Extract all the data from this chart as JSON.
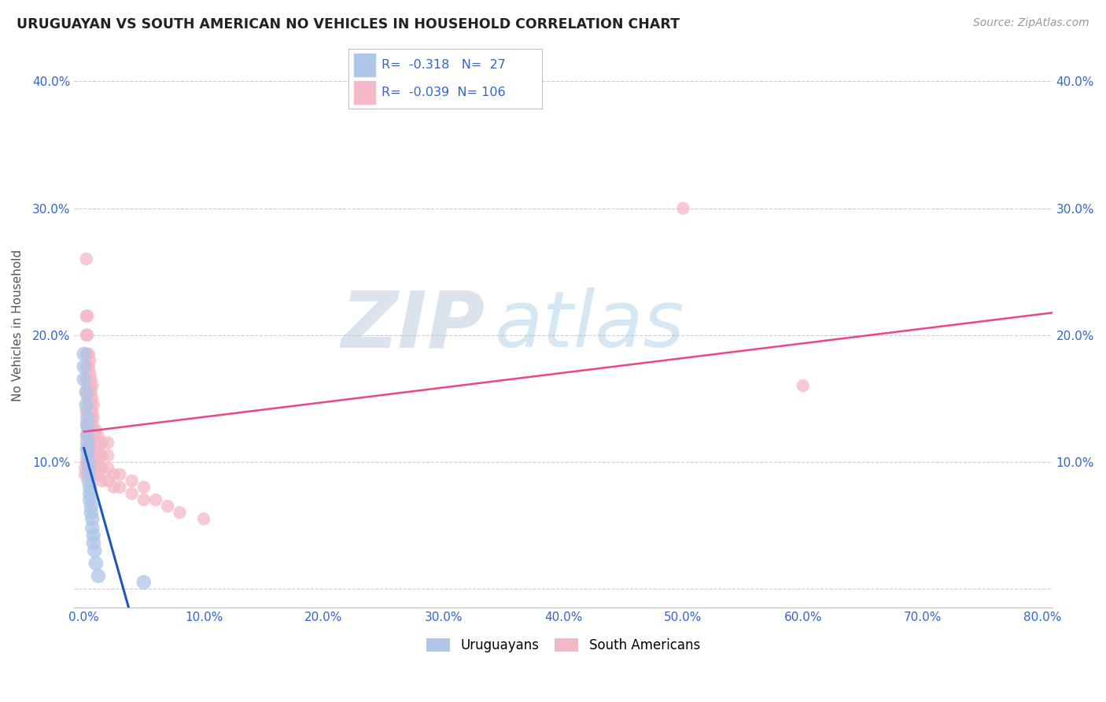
{
  "title": "URUGUAYAN VS SOUTH AMERICAN NO VEHICLES IN HOUSEHOLD CORRELATION CHART",
  "source": "Source: ZipAtlas.com",
  "xlabel_ticks": [
    0.0,
    0.1,
    0.2,
    0.3,
    0.4,
    0.5,
    0.6,
    0.7,
    0.8
  ],
  "xlabel_labels": [
    "0.0%",
    "10.0%",
    "20.0%",
    "30.0%",
    "40.0%",
    "50.0%",
    "60.0%",
    "70.0%",
    "80.0%"
  ],
  "ylabel_ticks": [
    0.0,
    0.1,
    0.2,
    0.3,
    0.4
  ],
  "ylabel_labels": [
    "",
    "10.0%",
    "20.0%",
    "30.0%",
    "40.0%"
  ],
  "xlim": [
    -0.008,
    0.808
  ],
  "ylim": [
    -0.015,
    0.43
  ],
  "watermark_zip": "ZIP",
  "watermark_atlas": "atlas",
  "legend_uruguayan": "Uruguayans",
  "legend_south_american": "South Americans",
  "r_uruguayan": -0.318,
  "n_uruguayan": 27,
  "r_south_american": -0.039,
  "n_south_american": 106,
  "uruguayan_color": "#aec6e8",
  "uruguayan_edge": "#aec6e8",
  "south_american_color": "#f4b8c8",
  "south_american_edge": "#f4b8c8",
  "trend_uruguayan_color": "#2255bb",
  "trend_south_american_color": "#ee4488",
  "uruguayan_points": [
    [
      0.0,
      0.185
    ],
    [
      0.0,
      0.175
    ],
    [
      0.0,
      0.165
    ],
    [
      0.002,
      0.155
    ],
    [
      0.002,
      0.145
    ],
    [
      0.003,
      0.135
    ],
    [
      0.003,
      0.128
    ],
    [
      0.003,
      0.122
    ],
    [
      0.003,
      0.115
    ],
    [
      0.003,
      0.11
    ],
    [
      0.003,
      0.105
    ],
    [
      0.004,
      0.098
    ],
    [
      0.004,
      0.092
    ],
    [
      0.004,
      0.085
    ],
    [
      0.005,
      0.08
    ],
    [
      0.005,
      0.075
    ],
    [
      0.005,
      0.07
    ],
    [
      0.006,
      0.065
    ],
    [
      0.006,
      0.06
    ],
    [
      0.007,
      0.055
    ],
    [
      0.007,
      0.048
    ],
    [
      0.008,
      0.042
    ],
    [
      0.008,
      0.036
    ],
    [
      0.009,
      0.03
    ],
    [
      0.01,
      0.02
    ],
    [
      0.012,
      0.01
    ],
    [
      0.05,
      0.005
    ]
  ],
  "south_american_points": [
    [
      0.001,
      0.09
    ],
    [
      0.001,
      0.095
    ],
    [
      0.002,
      0.1
    ],
    [
      0.002,
      0.11
    ],
    [
      0.002,
      0.12
    ],
    [
      0.002,
      0.13
    ],
    [
      0.002,
      0.14
    ],
    [
      0.002,
      0.155
    ],
    [
      0.002,
      0.165
    ],
    [
      0.002,
      0.175
    ],
    [
      0.002,
      0.185
    ],
    [
      0.002,
      0.2
    ],
    [
      0.002,
      0.215
    ],
    [
      0.002,
      0.26
    ],
    [
      0.003,
      0.09
    ],
    [
      0.003,
      0.095
    ],
    [
      0.003,
      0.1
    ],
    [
      0.003,
      0.11
    ],
    [
      0.003,
      0.12
    ],
    [
      0.003,
      0.13
    ],
    [
      0.003,
      0.14
    ],
    [
      0.003,
      0.15
    ],
    [
      0.003,
      0.155
    ],
    [
      0.003,
      0.16
    ],
    [
      0.003,
      0.17
    ],
    [
      0.003,
      0.175
    ],
    [
      0.003,
      0.185
    ],
    [
      0.003,
      0.2
    ],
    [
      0.003,
      0.215
    ],
    [
      0.004,
      0.095
    ],
    [
      0.004,
      0.105
    ],
    [
      0.004,
      0.115
    ],
    [
      0.004,
      0.125
    ],
    [
      0.004,
      0.135
    ],
    [
      0.004,
      0.145
    ],
    [
      0.004,
      0.155
    ],
    [
      0.004,
      0.165
    ],
    [
      0.004,
      0.175
    ],
    [
      0.004,
      0.185
    ],
    [
      0.005,
      0.09
    ],
    [
      0.005,
      0.095
    ],
    [
      0.005,
      0.1
    ],
    [
      0.005,
      0.11
    ],
    [
      0.005,
      0.12
    ],
    [
      0.005,
      0.13
    ],
    [
      0.005,
      0.14
    ],
    [
      0.005,
      0.15
    ],
    [
      0.005,
      0.16
    ],
    [
      0.005,
      0.17
    ],
    [
      0.005,
      0.18
    ],
    [
      0.006,
      0.095
    ],
    [
      0.006,
      0.105
    ],
    [
      0.006,
      0.115
    ],
    [
      0.006,
      0.125
    ],
    [
      0.006,
      0.135
    ],
    [
      0.006,
      0.145
    ],
    [
      0.006,
      0.155
    ],
    [
      0.006,
      0.165
    ],
    [
      0.007,
      0.09
    ],
    [
      0.007,
      0.1
    ],
    [
      0.007,
      0.11
    ],
    [
      0.007,
      0.12
    ],
    [
      0.007,
      0.13
    ],
    [
      0.007,
      0.14
    ],
    [
      0.007,
      0.15
    ],
    [
      0.007,
      0.16
    ],
    [
      0.008,
      0.095
    ],
    [
      0.008,
      0.105
    ],
    [
      0.008,
      0.115
    ],
    [
      0.008,
      0.125
    ],
    [
      0.008,
      0.135
    ],
    [
      0.008,
      0.145
    ],
    [
      0.009,
      0.09
    ],
    [
      0.009,
      0.1
    ],
    [
      0.009,
      0.11
    ],
    [
      0.009,
      0.12
    ],
    [
      0.01,
      0.095
    ],
    [
      0.01,
      0.105
    ],
    [
      0.01,
      0.115
    ],
    [
      0.01,
      0.125
    ],
    [
      0.012,
      0.09
    ],
    [
      0.012,
      0.1
    ],
    [
      0.012,
      0.11
    ],
    [
      0.012,
      0.12
    ],
    [
      0.015,
      0.085
    ],
    [
      0.015,
      0.095
    ],
    [
      0.015,
      0.105
    ],
    [
      0.015,
      0.115
    ],
    [
      0.02,
      0.085
    ],
    [
      0.02,
      0.095
    ],
    [
      0.02,
      0.105
    ],
    [
      0.02,
      0.115
    ],
    [
      0.025,
      0.08
    ],
    [
      0.025,
      0.09
    ],
    [
      0.03,
      0.08
    ],
    [
      0.03,
      0.09
    ],
    [
      0.04,
      0.075
    ],
    [
      0.04,
      0.085
    ],
    [
      0.05,
      0.07
    ],
    [
      0.05,
      0.08
    ],
    [
      0.06,
      0.07
    ],
    [
      0.07,
      0.065
    ],
    [
      0.08,
      0.06
    ],
    [
      0.1,
      0.055
    ],
    [
      0.5,
      0.3
    ],
    [
      0.6,
      0.16
    ]
  ],
  "dot_size_uruguayan": 180,
  "dot_size_south_american": 140
}
